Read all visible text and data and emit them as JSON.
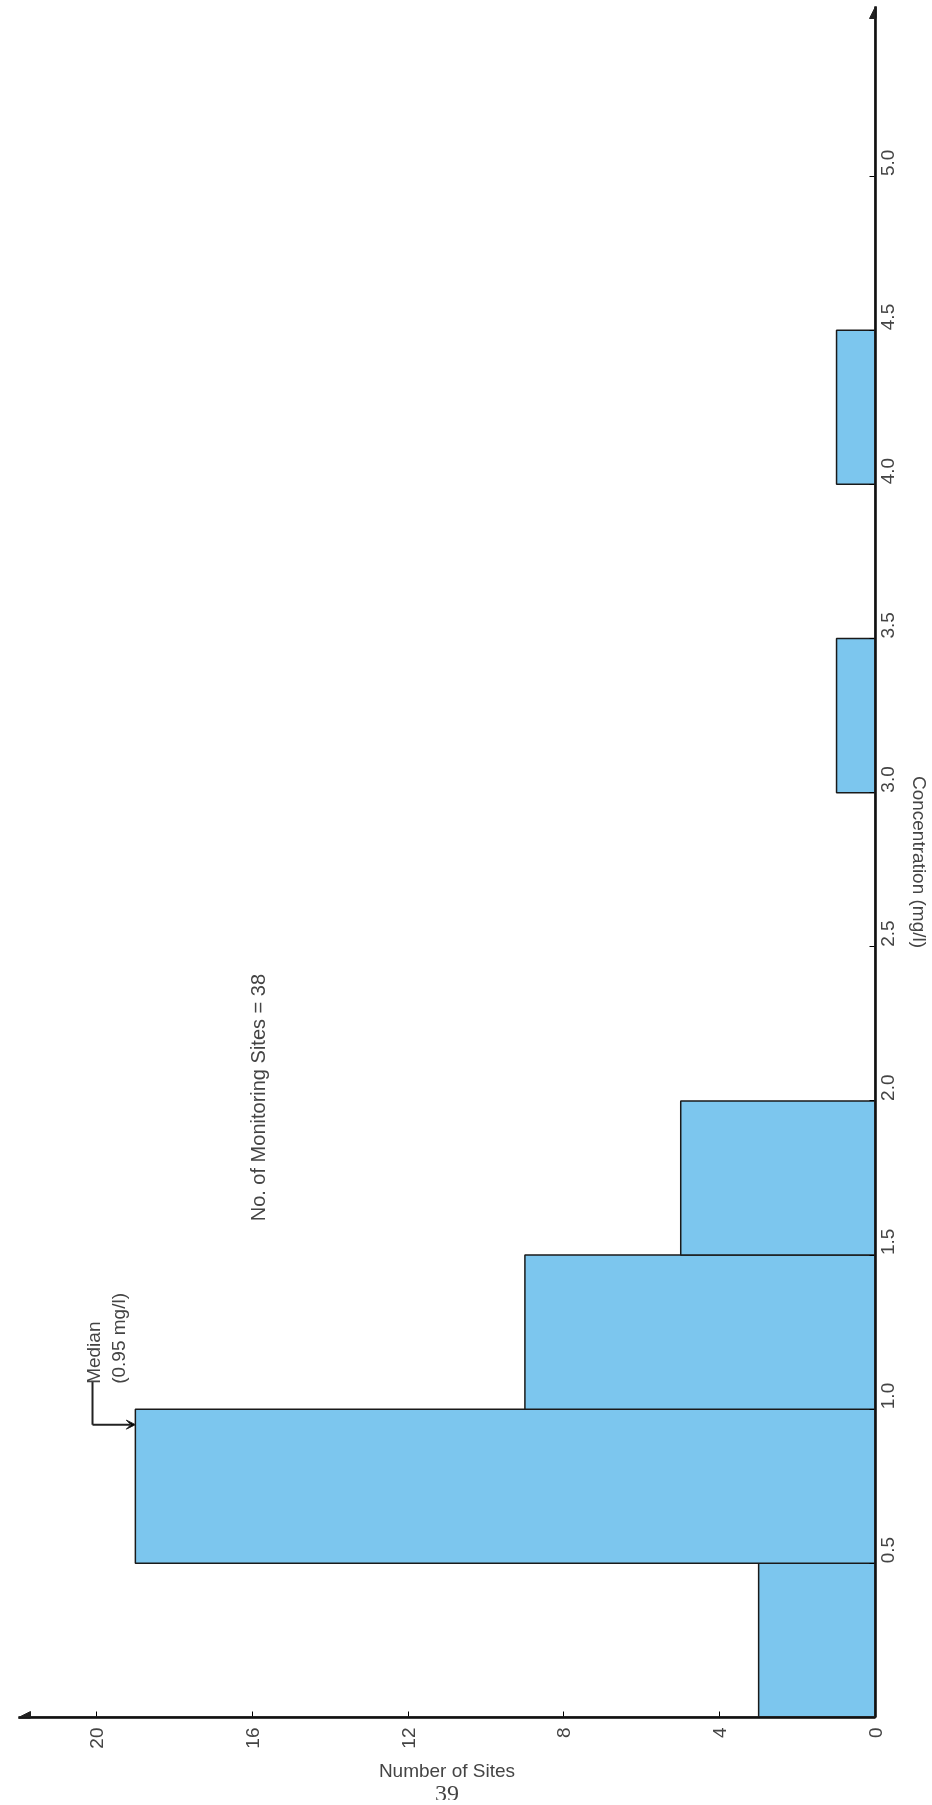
{
  "chart_data": {
    "type": "histogram",
    "orientation": "horizontal",
    "xlabel": "Number of Sites",
    "ylabel": "Concentration (mg/l)",
    "bins": [
      0,
      0.5,
      1.0,
      1.5,
      2.0,
      2.5,
      3.0,
      3.5,
      4.0,
      4.5
    ],
    "values": [
      3,
      19,
      9,
      5,
      0,
      0,
      1,
      0,
      1
    ],
    "color": "#7cc6ee",
    "xlim": [
      22,
      0
    ],
    "ylim": [
      0,
      5.55
    ],
    "yticks": [
      0.5,
      {
        "value": 1.0,
        "label": "1.0"
      },
      1.5,
      {
        "value": 2.0,
        "label": "2.0"
      },
      2.5,
      {
        "value": 3.0,
        "label": "3.0"
      },
      3.5,
      {
        "value": 4.0,
        "label": "4.0"
      },
      4.5,
      {
        "value": 5.0,
        "label": "5.0"
      }
    ],
    "xticks": [
      0,
      4,
      8,
      12,
      16,
      20
    ],
    "annotations": [
      {
        "text": "Median\n(0.95 mg/l)",
        "x": 19,
        "y": 0.95
      },
      "No. of Monitoring Sites = 38",
      "39"
    ]
  }
}
